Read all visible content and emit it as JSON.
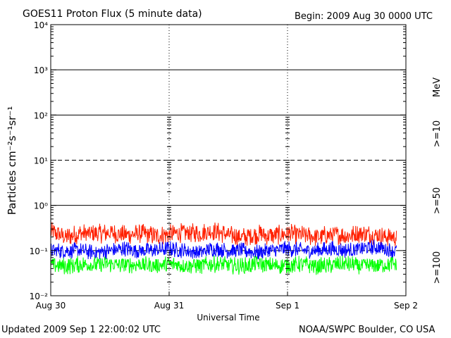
{
  "header": {
    "title": "GOES11 Proton Flux (5 minute data)",
    "begin": "Begin: 2009 Aug 30 0000 UTC"
  },
  "footer": {
    "updated": "Updated 2009 Sep  1 22:00:02 UTC",
    "credit": "NOAA/SWPC Boulder, CO USA"
  },
  "chart_data": {
    "type": "line",
    "title": "GOES11 Proton Flux (5 minute data)",
    "xlabel": "Universal Time",
    "ylabel": "Particles cm⁻²s⁻¹sr⁻¹",
    "yscale": "log",
    "ylim": [
      0.01,
      10000
    ],
    "xlim_days": [
      0,
      3
    ],
    "x_ticks": [
      {
        "day": 0,
        "label": "Aug 30"
      },
      {
        "day": 1,
        "label": "Aug 31"
      },
      {
        "day": 2,
        "label": "Sep 1"
      },
      {
        "day": 3,
        "label": "Sep 2"
      }
    ],
    "y_ticks": [
      {
        "value": 0.01,
        "label": "10⁻²"
      },
      {
        "value": 0.1,
        "label": "10⁻¹"
      },
      {
        "value": 1,
        "label": "10⁰"
      },
      {
        "value": 10,
        "label": "10¹"
      },
      {
        "value": 100,
        "label": "10²"
      },
      {
        "value": 1000,
        "label": "10³"
      },
      {
        "value": 10000,
        "label": "10⁴"
      }
    ],
    "series": [
      {
        "name": ">=10 MeV",
        "label": ">=10",
        "color": "#ff2000",
        "times": [
          0,
          0.125,
          0.25,
          0.375,
          0.5,
          0.625,
          0.75,
          0.875,
          1,
          1.125,
          1.25,
          1.375,
          1.5,
          1.625,
          1.75,
          1.875,
          2,
          2.125,
          2.25,
          2.375,
          2.5,
          2.625,
          2.75,
          2.875,
          2.92
        ],
        "values": [
          0.26,
          0.2,
          0.24,
          0.23,
          0.25,
          0.22,
          0.24,
          0.21,
          0.23,
          0.25,
          0.24,
          0.27,
          0.22,
          0.2,
          0.23,
          0.21,
          0.24,
          0.22,
          0.2,
          0.23,
          0.21,
          0.24,
          0.22,
          0.2,
          0.2
        ]
      },
      {
        "name": ">=50 MeV",
        "label": ">=50",
        "color": "#0000ff",
        "times": [
          0,
          0.125,
          0.25,
          0.375,
          0.5,
          0.625,
          0.75,
          0.875,
          1,
          1.125,
          1.25,
          1.375,
          1.5,
          1.625,
          1.75,
          1.875,
          2,
          2.125,
          2.25,
          2.375,
          2.5,
          2.625,
          2.75,
          2.875,
          2.92
        ],
        "values": [
          0.1,
          0.1,
          0.1,
          0.09,
          0.1,
          0.11,
          0.1,
          0.1,
          0.11,
          0.1,
          0.09,
          0.11,
          0.1,
          0.1,
          0.09,
          0.1,
          0.11,
          0.1,
          0.1,
          0.11,
          0.1,
          0.11,
          0.12,
          0.1,
          0.1
        ]
      },
      {
        "name": ">=100 MeV",
        "label": ">=100",
        "color": "#00ff00",
        "times": [
          0,
          0.125,
          0.25,
          0.375,
          0.5,
          0.625,
          0.75,
          0.875,
          1,
          1.125,
          1.25,
          1.375,
          1.5,
          1.625,
          1.75,
          1.875,
          2,
          2.125,
          2.25,
          2.375,
          2.5,
          2.625,
          2.75,
          2.875,
          2.92
        ],
        "values": [
          0.05,
          0.045,
          0.05,
          0.048,
          0.05,
          0.047,
          0.05,
          0.045,
          0.05,
          0.048,
          0.046,
          0.05,
          0.047,
          0.045,
          0.05,
          0.046,
          0.048,
          0.05,
          0.045,
          0.047,
          0.05,
          0.046,
          0.048,
          0.05,
          0.05
        ]
      }
    ],
    "legend_unit": "MeV",
    "legend_position": "right-vertical",
    "grid": true
  }
}
